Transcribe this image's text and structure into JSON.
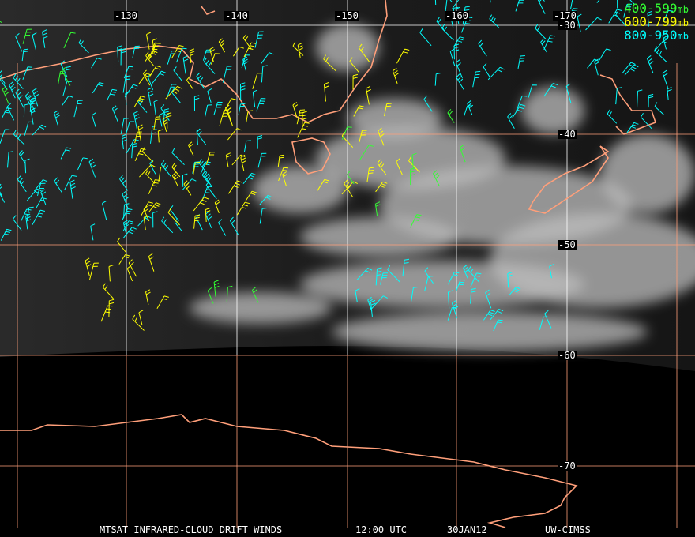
{
  "title_bar": {
    "satellite": "MTSAT INFRARED-CLOUD DRIFT WINDS",
    "time": "12:00 UTC",
    "date": "30JAN12",
    "source": "UW-CIMSS"
  },
  "legend": [
    {
      "range": "400-599",
      "unit": "mb",
      "color": "#33ff33"
    },
    {
      "range": "600-799",
      "unit": "mb",
      "color": "#ffff00"
    },
    {
      "range": "800-950",
      "unit": "mb",
      "color": "#00ffff"
    }
  ],
  "longitude_labels": [
    "-130",
    "-140",
    "-150",
    "-160",
    "-170"
  ],
  "latitude_labels": [
    "-30",
    "-40",
    "-50",
    "-60",
    "-70"
  ],
  "colors": {
    "coastline": "#ff9f7a",
    "lat_grid": "#ff9f7a",
    "lon_grid": "#ffffff"
  }
}
